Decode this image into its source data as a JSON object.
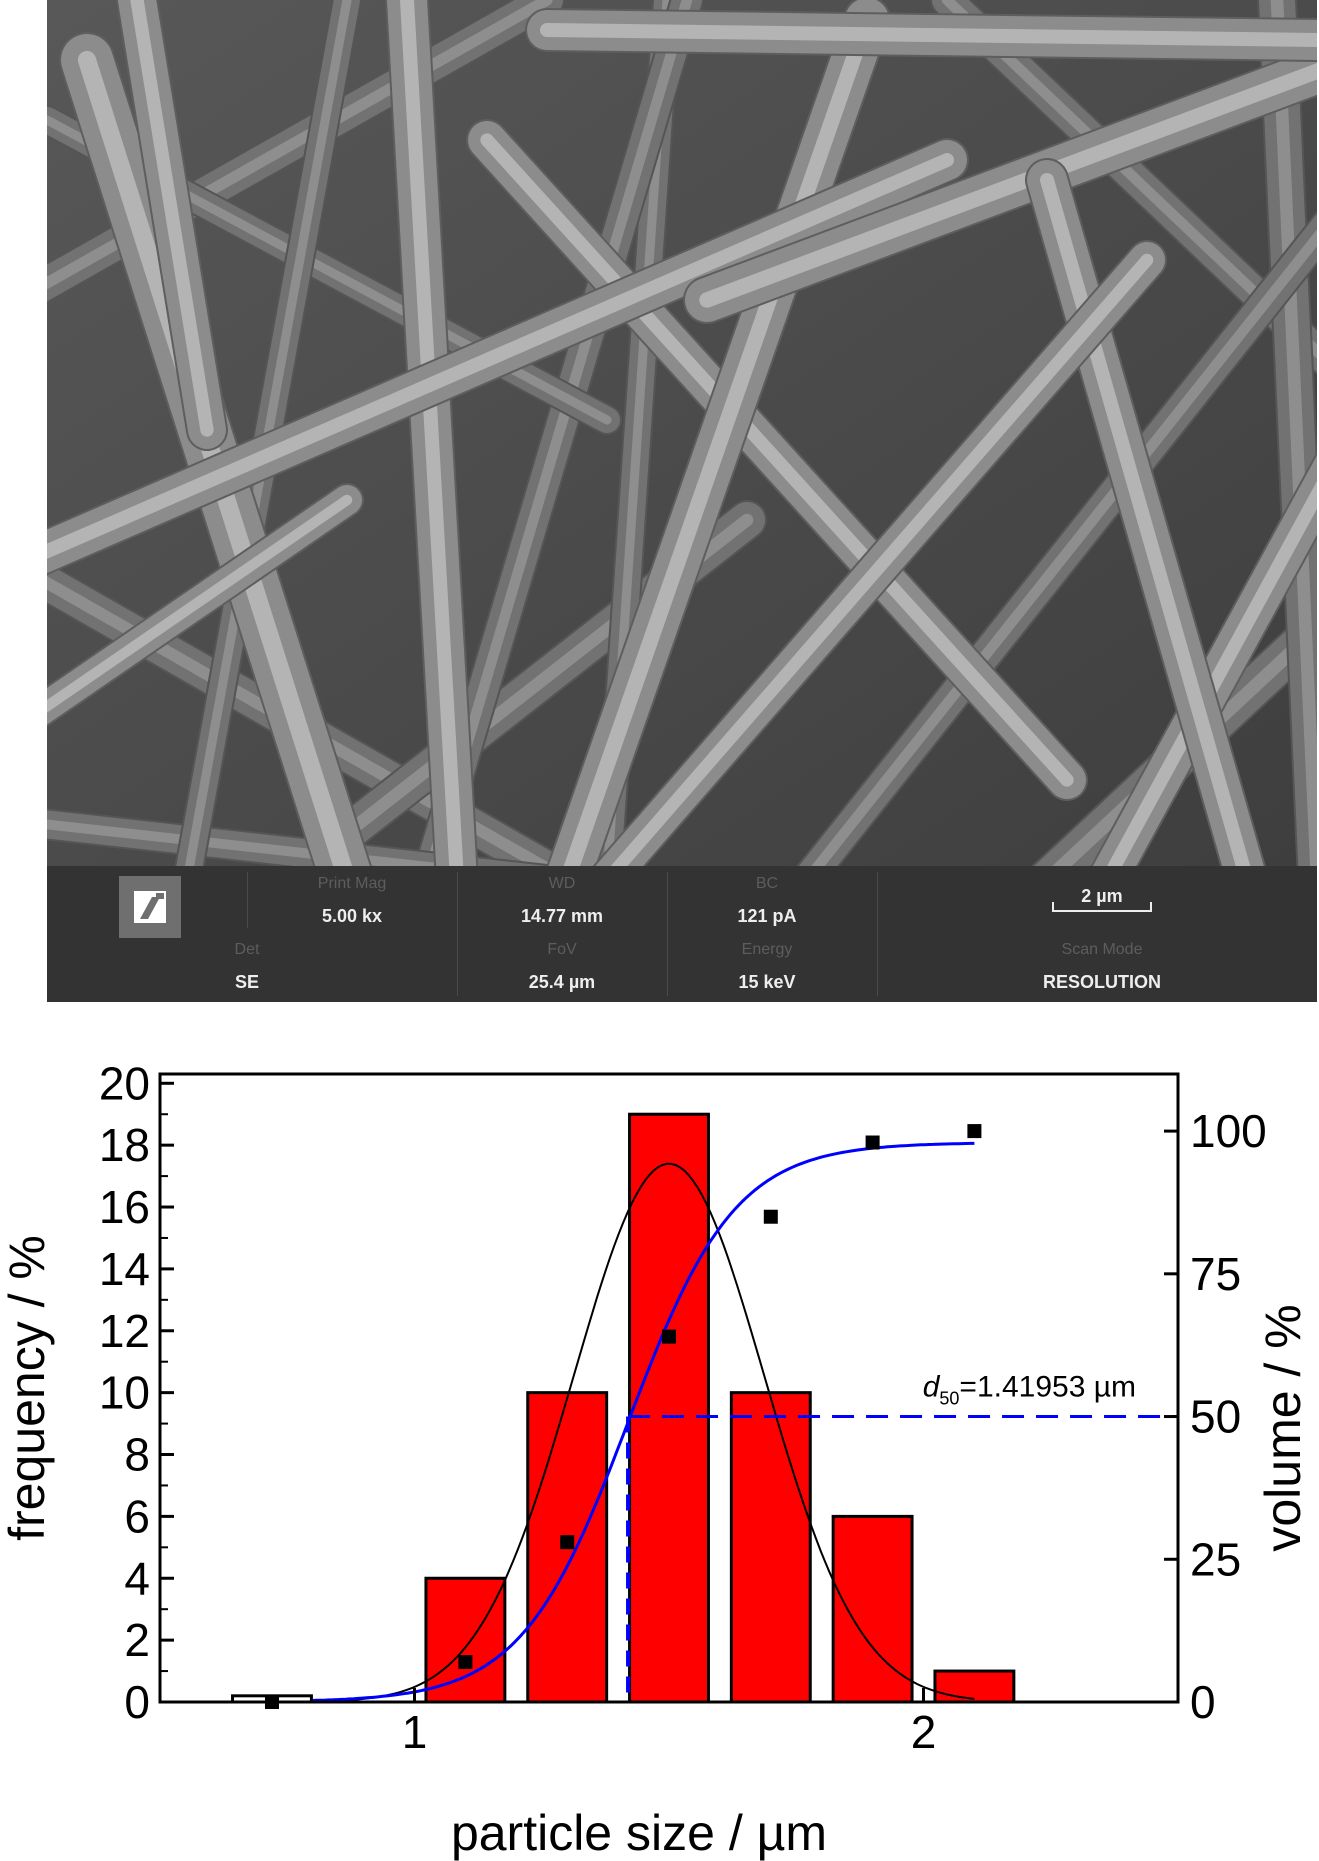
{
  "sem": {
    "infobar": {
      "print_mag_caption": "Print Mag",
      "print_mag_value": "5.00 kx",
      "wd_caption": "WD",
      "wd_value": "14.77 mm",
      "bc_caption": "BC",
      "bc_value": "121 pA",
      "det_caption": "Det",
      "det_value": "SE",
      "fov_caption": "FoV",
      "fov_value": "25.4 µm",
      "energy_caption": "Energy",
      "energy_value": "15 keV",
      "scan_mode_caption": "Scan Mode",
      "scan_mode_value": "RESOLUTION",
      "scale_bar_label": "2 µm"
    }
  },
  "chart_data": {
    "type": "bar",
    "title": "",
    "xlabel": "particle size / µm",
    "ylabel_left": "frequency / %",
    "ylabel_right": "volume / %",
    "xlim": [
      0.5,
      2.5
    ],
    "ylim_left": [
      0,
      20.3
    ],
    "ylim_right": [
      0,
      110
    ],
    "x_ticks": [
      1,
      2
    ],
    "y_ticks_left": [
      0,
      2,
      4,
      6,
      8,
      10,
      12,
      14,
      16,
      18,
      20
    ],
    "y_ticks_right": [
      0,
      25,
      50,
      75,
      100
    ],
    "bars": {
      "bin_width": 0.155,
      "centers": [
        0.72,
        1.1,
        1.3,
        1.5,
        1.7,
        1.9,
        2.1
      ],
      "values": [
        0.2,
        4,
        10,
        19,
        10,
        6,
        1
      ],
      "color": "#ff0000"
    },
    "series": [
      {
        "type": "scatter",
        "axis": "right",
        "color": "#000000",
        "x": [
          0.72,
          1.1,
          1.3,
          1.5,
          1.7,
          1.9,
          2.1
        ],
        "y": [
          0,
          7,
          28,
          64,
          85,
          98,
          100
        ]
      },
      {
        "type": "line",
        "fit": "normal",
        "axis": "left",
        "color": "#000000",
        "mean": 1.5,
        "sigma": 0.187,
        "peak": 17.4,
        "range": [
          0.72,
          2.1
        ]
      },
      {
        "type": "line",
        "fit": "cumulative",
        "axis": "right",
        "color": "#0000ff",
        "center": 1.41953,
        "scale": 0.105,
        "max": 98,
        "range": [
          0.8,
          2.1
        ]
      }
    ],
    "reference": {
      "x": 1.41953,
      "y_right": 50,
      "color": "#0000ff",
      "style": "dashed"
    },
    "annotation": {
      "sym": "d",
      "sub": "50",
      "text": "=1.41953 µm"
    }
  }
}
